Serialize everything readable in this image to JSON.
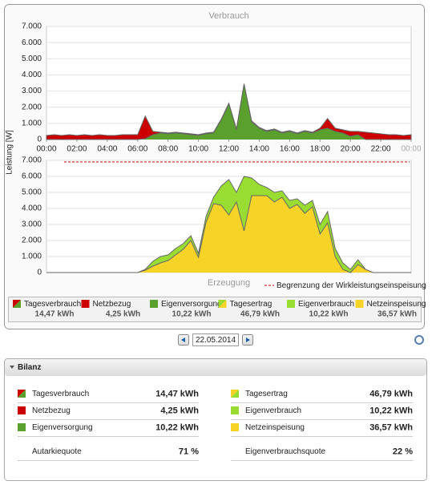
{
  "chart_data": [
    {
      "type": "area",
      "title": "Verbrauch",
      "y_label": "Leistung [W]",
      "total_name": "Tagesverbrauch",
      "total": "14,47 kWh",
      "x": [
        0,
        0.5,
        1,
        1.5,
        2,
        2.5,
        3,
        3.5,
        4,
        4.5,
        5,
        5.5,
        6,
        6.5,
        7,
        7.5,
        8,
        8.5,
        9,
        9.5,
        10,
        10.5,
        11,
        11.5,
        12,
        12.5,
        13,
        13.5,
        14,
        14.5,
        15,
        15.5,
        16,
        16.5,
        17,
        17.5,
        18,
        18.5,
        19,
        19.5,
        20,
        20.5,
        21,
        21.5,
        22,
        22.5,
        23,
        23.5,
        24
      ],
      "xlim": [
        0,
        24
      ],
      "xticks": [
        {
          "value": 0,
          "label": "00:00"
        },
        {
          "value": 2,
          "label": "02:00"
        },
        {
          "value": 4,
          "label": "04:00"
        },
        {
          "value": 6,
          "label": "06:00"
        },
        {
          "value": 8,
          "label": "08:00"
        },
        {
          "value": 10,
          "label": "10:00"
        },
        {
          "value": 12,
          "label": "12:00"
        },
        {
          "value": 14,
          "label": "14:00"
        },
        {
          "value": 16,
          "label": "16:00"
        },
        {
          "value": 18,
          "label": "18:00"
        },
        {
          "value": 20,
          "label": "20:00"
        },
        {
          "value": 22,
          "label": "22:00"
        },
        {
          "value": 24,
          "label": "00:00"
        }
      ],
      "ylim": [
        0,
        7000
      ],
      "yticks": [
        0,
        {
          "value": 1000,
          "label": "1.000"
        },
        {
          "value": 2000,
          "label": "2.000"
        },
        {
          "value": 3000,
          "label": "3.000"
        },
        {
          "value": 4000,
          "label": "4.000"
        },
        {
          "value": 5000,
          "label": "5.000"
        },
        {
          "value": 6000,
          "label": "6.000"
        },
        {
          "value": 7000,
          "label": "7.000"
        }
      ],
      "grid": true,
      "series": [
        {
          "name": "Netzbezug",
          "color": "#cc0000",
          "total": "4,25 kWh",
          "values": [
            250,
            300,
            250,
            300,
            250,
            300,
            250,
            300,
            250,
            250,
            300,
            300,
            300,
            1400,
            200,
            50,
            50,
            50,
            50,
            50,
            50,
            50,
            50,
            50,
            50,
            50,
            50,
            50,
            50,
            50,
            50,
            50,
            50,
            50,
            50,
            50,
            100,
            600,
            200,
            200,
            300,
            200,
            450,
            400,
            350,
            300,
            300,
            250,
            300
          ]
        },
        {
          "name": "Eigenversorgung",
          "color": "#5aa02c",
          "total": "10,22 kWh",
          "values": [
            0,
            0,
            0,
            0,
            0,
            0,
            0,
            0,
            0,
            0,
            0,
            0,
            0,
            50,
            300,
            400,
            350,
            400,
            350,
            300,
            250,
            350,
            400,
            1200,
            2200,
            600,
            3400,
            1100,
            700,
            500,
            600,
            400,
            500,
            350,
            500,
            400,
            600,
            700,
            500,
            400,
            200,
            300,
            0,
            0,
            0,
            0,
            0,
            0,
            0
          ]
        }
      ]
    },
    {
      "type": "area",
      "title": "Erzeugung",
      "total_name": "Tagesertrag",
      "total": "46,79 kWh",
      "x": [
        0,
        0.5,
        1,
        1.5,
        2,
        2.5,
        3,
        3.5,
        4,
        4.5,
        5,
        5.5,
        6,
        6.5,
        7,
        7.5,
        8,
        8.5,
        9,
        9.5,
        10,
        10.5,
        11,
        11.5,
        12,
        12.5,
        13,
        13.5,
        14,
        14.5,
        15,
        15.5,
        16,
        16.5,
        17,
        17.5,
        18,
        18.5,
        19,
        19.5,
        20,
        20.5,
        21,
        21.5,
        22,
        22.5,
        23,
        23.5,
        24
      ],
      "xlim": [
        0,
        24
      ],
      "ylim": [
        0,
        7000
      ],
      "yticks": [
        0,
        {
          "value": 1000,
          "label": "1.000"
        },
        {
          "value": 2000,
          "label": "2.000"
        },
        {
          "value": 3000,
          "label": "3.000"
        },
        {
          "value": 4000,
          "label": "4.000"
        },
        {
          "value": 5000,
          "label": "5.000"
        },
        {
          "value": 6000,
          "label": "6.000"
        },
        {
          "value": 7000,
          "label": "7.000"
        }
      ],
      "grid": true,
      "limit_line": {
        "label": "Begrenzung der Wirkleistungseinspeisung",
        "value": 6900,
        "color": "#cc0000"
      },
      "series": [
        {
          "name": "Eigenverbrauch",
          "color": "#99dd33",
          "total": "10,22 kWh",
          "values": [
            0,
            0,
            0,
            0,
            0,
            0,
            0,
            0,
            0,
            0,
            0,
            0,
            0,
            50,
            300,
            400,
            350,
            400,
            350,
            300,
            250,
            350,
            400,
            1200,
            2200,
            600,
            3400,
            1100,
            700,
            500,
            600,
            400,
            500,
            350,
            500,
            400,
            600,
            700,
            500,
            400,
            200,
            300,
            0,
            0,
            0,
            0,
            0,
            0,
            0
          ]
        },
        {
          "name": "Netzeinspeisung",
          "color": "#f5d327",
          "total": "36,57 kWh",
          "values": [
            0,
            0,
            0,
            0,
            0,
            0,
            0,
            0,
            0,
            0,
            0,
            0,
            0,
            150,
            400,
            600,
            750,
            1100,
            1450,
            2000,
            950,
            3150,
            4300,
            4200,
            3600,
            4400,
            2600,
            4800,
            4800,
            4800,
            4400,
            4700,
            4000,
            4250,
            3700,
            4100,
            2400,
            3100,
            1000,
            200,
            0,
            500,
            200,
            0,
            0,
            0,
            0,
            0,
            0
          ]
        }
      ]
    }
  ],
  "date": "22.05.2014",
  "bilanz": {
    "title": "Bilanz",
    "rows": [
      [
        "Tagesverbrauch",
        "14,47 kWh",
        "Tagesertrag",
        "46,79 kWh"
      ],
      [
        "Netzbezug",
        "4,25 kWh",
        "Eigenverbrauch",
        "10,22 kWh"
      ],
      [
        "Eigenversorgung",
        "10,22 kWh",
        "Netzeinspeisung",
        "36,57 kWh"
      ],
      [
        "Autarkiequote",
        "71 %",
        "Eigenverbrauchsquote",
        "22 %"
      ]
    ]
  }
}
